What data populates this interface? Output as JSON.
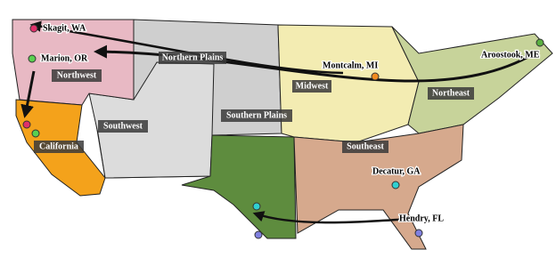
{
  "regions": [
    {
      "label": "Northwest"
    },
    {
      "label": "California"
    },
    {
      "label": "Southwest"
    },
    {
      "label": "Northern Plains"
    },
    {
      "label": "Southern Plains"
    },
    {
      "label": "Midwest"
    },
    {
      "label": "Northeast"
    },
    {
      "label": "Southeast"
    }
  ],
  "locations": [
    {
      "label": "Skagit, WA"
    },
    {
      "label": "Marion, OR"
    },
    {
      "label": "Montcalm, MI"
    },
    {
      "label": "Aroostook, ME"
    },
    {
      "label": "Decatur, GA"
    },
    {
      "label": "Hendry, FL"
    }
  ]
}
